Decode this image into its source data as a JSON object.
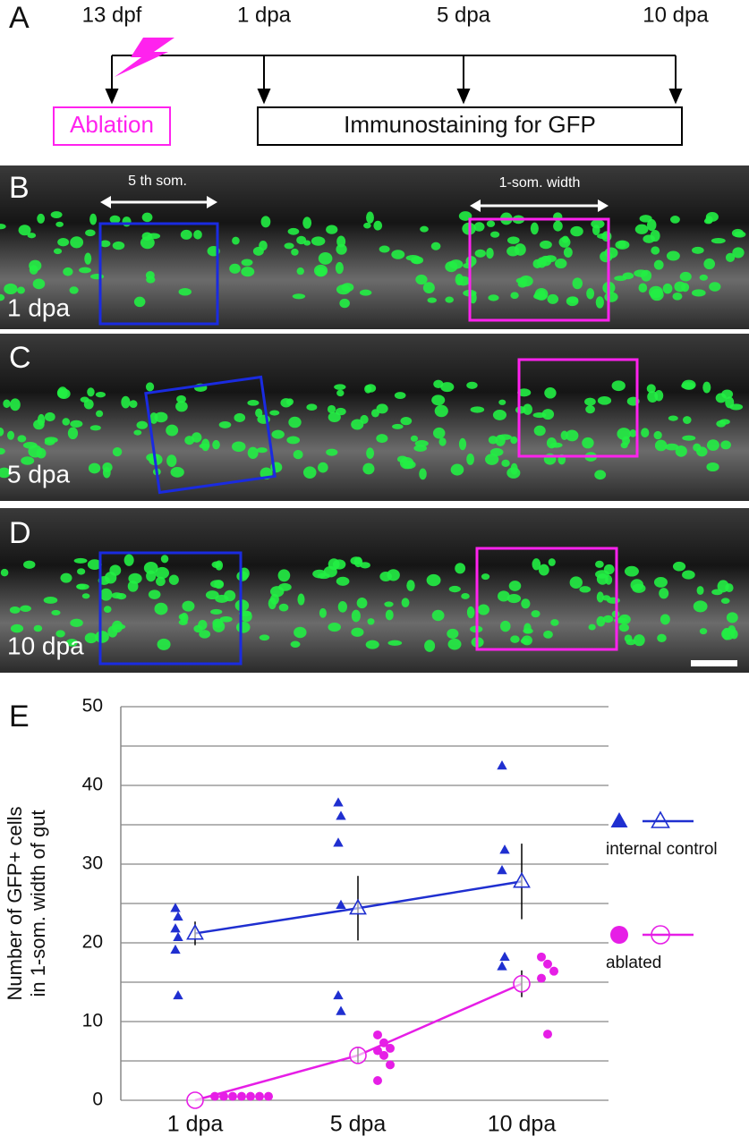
{
  "panel_a": {
    "label": "A",
    "timepoints": [
      "13 dpf",
      "1 dpa",
      "5 dpa",
      "10 dpa"
    ],
    "ablation": "Ablation",
    "immunostaining": "Immunostaining for GFP"
  },
  "panel_b": {
    "label": "B",
    "time": "1 dpa",
    "somite_label": "5 th som.",
    "width_label": "1-som. width"
  },
  "panel_c": {
    "label": "C",
    "time": "5 dpa"
  },
  "panel_d": {
    "label": "D",
    "time": "10 dpa"
  },
  "chart_data": {
    "type": "scatter",
    "panel_label": "E",
    "ylabel": [
      "Number of GFP+ cells",
      "in 1-som. width of gut"
    ],
    "categories": [
      "1 dpa",
      "5 dpa",
      "10 dpa"
    ],
    "ylim": [
      0,
      50
    ],
    "yticks": [
      0,
      10,
      20,
      30,
      40,
      50
    ],
    "minor_yticks": [
      5,
      15,
      25,
      35,
      45
    ],
    "grid": true,
    "series": [
      {
        "name": "internal control",
        "color": "#1f2fd0",
        "marker": "triangle",
        "values": [
          21.2,
          24.4,
          27.8
        ],
        "errors": [
          1.5,
          4.1,
          4.8
        ],
        "points": [
          [
            24.4,
            23.3,
            21.8,
            20.7,
            19.1,
            13.3
          ],
          [
            37.8,
            36.1,
            32.7,
            24.8,
            13.3,
            11.3
          ],
          [
            42.5,
            31.8,
            29.2,
            18.2,
            17.0
          ]
        ]
      },
      {
        "name": "ablated",
        "color": "#e61ee6",
        "marker": "circle",
        "values": [
          0,
          5.7,
          14.8
        ],
        "errors": [
          0,
          1.1,
          1.7
        ],
        "points": [
          [
            0.5,
            0.5,
            0.5,
            0.5,
            0.5,
            0.5,
            0.5
          ],
          [
            8.3,
            7.3,
            6.6,
            6.3,
            5.7,
            4.5,
            2.5
          ],
          [
            18.2,
            17.3,
            16.4,
            15.5,
            8.4
          ]
        ]
      }
    ]
  }
}
